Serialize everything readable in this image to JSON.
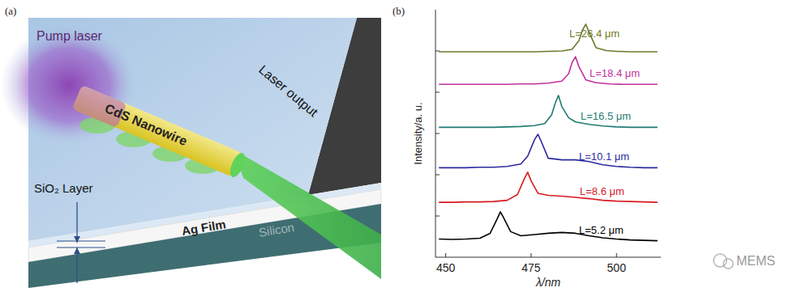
{
  "panel_labels": [
    "(a)",
    "(b)"
  ],
  "diagram": {
    "labels": {
      "pump_laser": "Pump laser",
      "nanowire": "CdS Nanowire",
      "output": "Laser output",
      "sio2": "SiO₂ Layer",
      "ag": "Ag Film",
      "silicon": "Silicon"
    }
  },
  "chart_data": {
    "type": "line",
    "x_label": "λ/nm",
    "y_label": "Intensity/a. u.",
    "xlim": [
      447,
      513
    ],
    "xticks": [
      450,
      475,
      500
    ],
    "ylim": [
      0,
      6
    ],
    "yticks": [
      1,
      2,
      3,
      4,
      5
    ],
    "tick_labels": "x",
    "series": [
      {
        "name": "L=5.2 μm",
        "color": "#000000",
        "x": [
          448,
          452,
          456,
          460,
          463,
          465,
          466,
          467,
          469,
          472,
          476,
          480,
          484,
          488,
          492,
          496,
          500,
          504,
          508,
          512
        ],
        "values": [
          0.44,
          0.43,
          0.44,
          0.46,
          0.58,
          0.92,
          1.1,
          0.95,
          0.62,
          0.52,
          0.55,
          0.58,
          0.6,
          0.58,
          0.52,
          0.47,
          0.44,
          0.42,
          0.41,
          0.4
        ]
      },
      {
        "name": "L=8.6 μm",
        "color": "#d7191f",
        "x": [
          448,
          452,
          456,
          460,
          464,
          468,
          471,
          473,
          474,
          475,
          477,
          480,
          484,
          488,
          492,
          496,
          500,
          504,
          508,
          512
        ],
        "values": [
          1.33,
          1.33,
          1.34,
          1.34,
          1.35,
          1.38,
          1.52,
          1.9,
          2.06,
          1.85,
          1.55,
          1.5,
          1.48,
          1.45,
          1.42,
          1.38,
          1.36,
          1.35,
          1.34,
          1.33
        ]
      },
      {
        "name": "L=10.1 μm",
        "color": "#2a2a9e",
        "x": [
          448,
          452,
          456,
          460,
          464,
          468,
          472,
          474,
          476,
          477,
          478,
          480,
          484,
          488,
          492,
          496,
          500,
          504,
          508,
          512
        ],
        "values": [
          2.17,
          2.17,
          2.17,
          2.18,
          2.18,
          2.2,
          2.26,
          2.45,
          2.85,
          2.98,
          2.8,
          2.4,
          2.36,
          2.36,
          2.32,
          2.24,
          2.2,
          2.18,
          2.17,
          2.17
        ]
      },
      {
        "name": "L=16.5 μm",
        "color": "#1f7a73",
        "x": [
          448,
          452,
          456,
          460,
          464,
          468,
          472,
          476,
          479,
          481,
          482,
          483,
          484,
          486,
          488,
          492,
          496,
          500,
          504,
          508,
          512
        ],
        "values": [
          3.15,
          3.15,
          3.15,
          3.15,
          3.15,
          3.16,
          3.17,
          3.19,
          3.24,
          3.45,
          3.72,
          3.92,
          3.65,
          3.38,
          3.28,
          3.22,
          3.18,
          3.16,
          3.15,
          3.15,
          3.15
        ]
      },
      {
        "name": "L=18.4 μm",
        "color": "#c0309c",
        "x": [
          448,
          452,
          456,
          460,
          464,
          468,
          472,
          476,
          480,
          484,
          486,
          487,
          488,
          489,
          491,
          494,
          498,
          502,
          506,
          512
        ],
        "values": [
          4.19,
          4.19,
          4.19,
          4.19,
          4.19,
          4.19,
          4.2,
          4.2,
          4.22,
          4.27,
          4.45,
          4.72,
          4.86,
          4.62,
          4.3,
          4.23,
          4.2,
          4.19,
          4.19,
          4.19
        ]
      },
      {
        "name": "L=26.4 μm",
        "color": "#6d7a2c",
        "x": [
          448,
          452,
          456,
          460,
          464,
          468,
          472,
          476,
          480,
          484,
          487,
          489,
          490,
          491,
          492,
          494,
          497,
          500,
          504,
          508,
          512
        ],
        "values": [
          4.98,
          4.98,
          4.98,
          4.98,
          4.98,
          4.98,
          4.98,
          4.98,
          4.99,
          5.0,
          5.04,
          5.25,
          5.5,
          5.65,
          5.45,
          5.08,
          5.01,
          4.99,
          4.98,
          4.98,
          4.98
        ]
      }
    ]
  },
  "watermark": "MEMS"
}
